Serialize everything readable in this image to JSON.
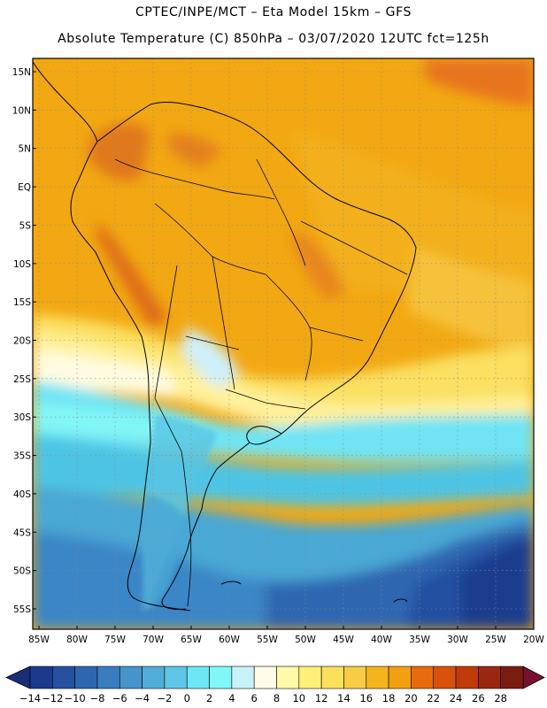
{
  "header": {
    "line1": "CPTEC/INPE/MCT –  Eta Model 15km – GFS",
    "line2": "Absolute Temperature (C) 850hPa – 03/07/2020 12UTC fct=125h"
  },
  "map": {
    "lat_labels": [
      "15N",
      "10N",
      "5N",
      "EQ",
      "5S",
      "10S",
      "15S",
      "20S",
      "25S",
      "30S",
      "35S",
      "40S",
      "45S",
      "50S",
      "55S"
    ],
    "lat_values": [
      15,
      10,
      5,
      0,
      -5,
      -10,
      -15,
      -20,
      -25,
      -30,
      -35,
      -40,
      -45,
      -50,
      -55
    ],
    "lon_labels": [
      "85W",
      "80W",
      "75W",
      "70W",
      "65W",
      "60W",
      "55W",
      "50W",
      "45W",
      "40W",
      "35W",
      "30W",
      "25W",
      "20W"
    ],
    "lon_values": [
      -85,
      -80,
      -75,
      -70,
      -65,
      -60,
      -55,
      -50,
      -45,
      -40,
      -35,
      -30,
      -25,
      -20
    ]
  },
  "colorbar": {
    "labels": [
      "-14",
      "-12",
      "-10",
      "-8",
      "-6",
      "-4",
      "-2",
      "0",
      "2",
      "4",
      "6",
      "8",
      "10",
      "12",
      "14",
      "16",
      "18",
      "20",
      "22",
      "24",
      "26",
      "28"
    ],
    "colors": [
      "#1c3a8c",
      "#2650a0",
      "#2e66b0",
      "#3a7cc0",
      "#4694cc",
      "#52acd8",
      "#5ec6e6",
      "#6ee6f4",
      "#80f8f8",
      "#c8f2fa",
      "#fffbe6",
      "#fffaa8",
      "#fff07a",
      "#fbe05c",
      "#f8cc44",
      "#f4b41e",
      "#f2a012",
      "#e86c0e",
      "#d8520c",
      "#c03a0a",
      "#9a2810",
      "#7a1c12"
    ],
    "under_color": "#1a2e78",
    "over_color": "#7a1030"
  }
}
